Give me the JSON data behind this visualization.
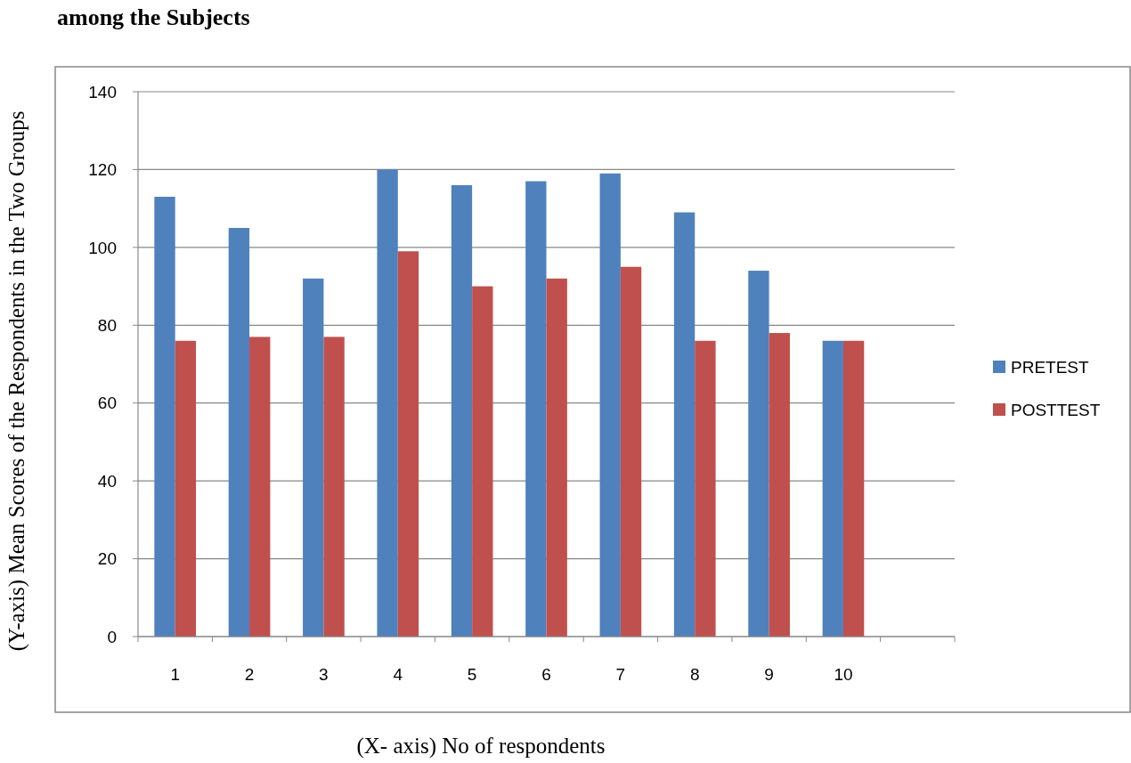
{
  "chart_data": {
    "type": "bar",
    "title": "among the Subjects",
    "xlabel": "(X- axis) No of respondents",
    "ylabel": "(Y-axis) Mean Scores of the Respondents in the Two Groups",
    "categories": [
      "1",
      "2",
      "3",
      "4",
      "5",
      "6",
      "7",
      "8",
      "9",
      "10",
      null
    ],
    "series": [
      {
        "name": "PRETEST",
        "color": "#4f81bd",
        "values": [
          113,
          105,
          92,
          120,
          116,
          117,
          119,
          109,
          94,
          76,
          null
        ]
      },
      {
        "name": "POSTTEST",
        "color": "#c0504d",
        "values": [
          76,
          77,
          77,
          99,
          90,
          92,
          95,
          76,
          78,
          76,
          null
        ]
      }
    ],
    "ylim": [
      0,
      140
    ],
    "yticks": [
      0,
      20,
      40,
      60,
      80,
      100,
      120,
      140
    ],
    "grid": "y",
    "legend": "right"
  }
}
